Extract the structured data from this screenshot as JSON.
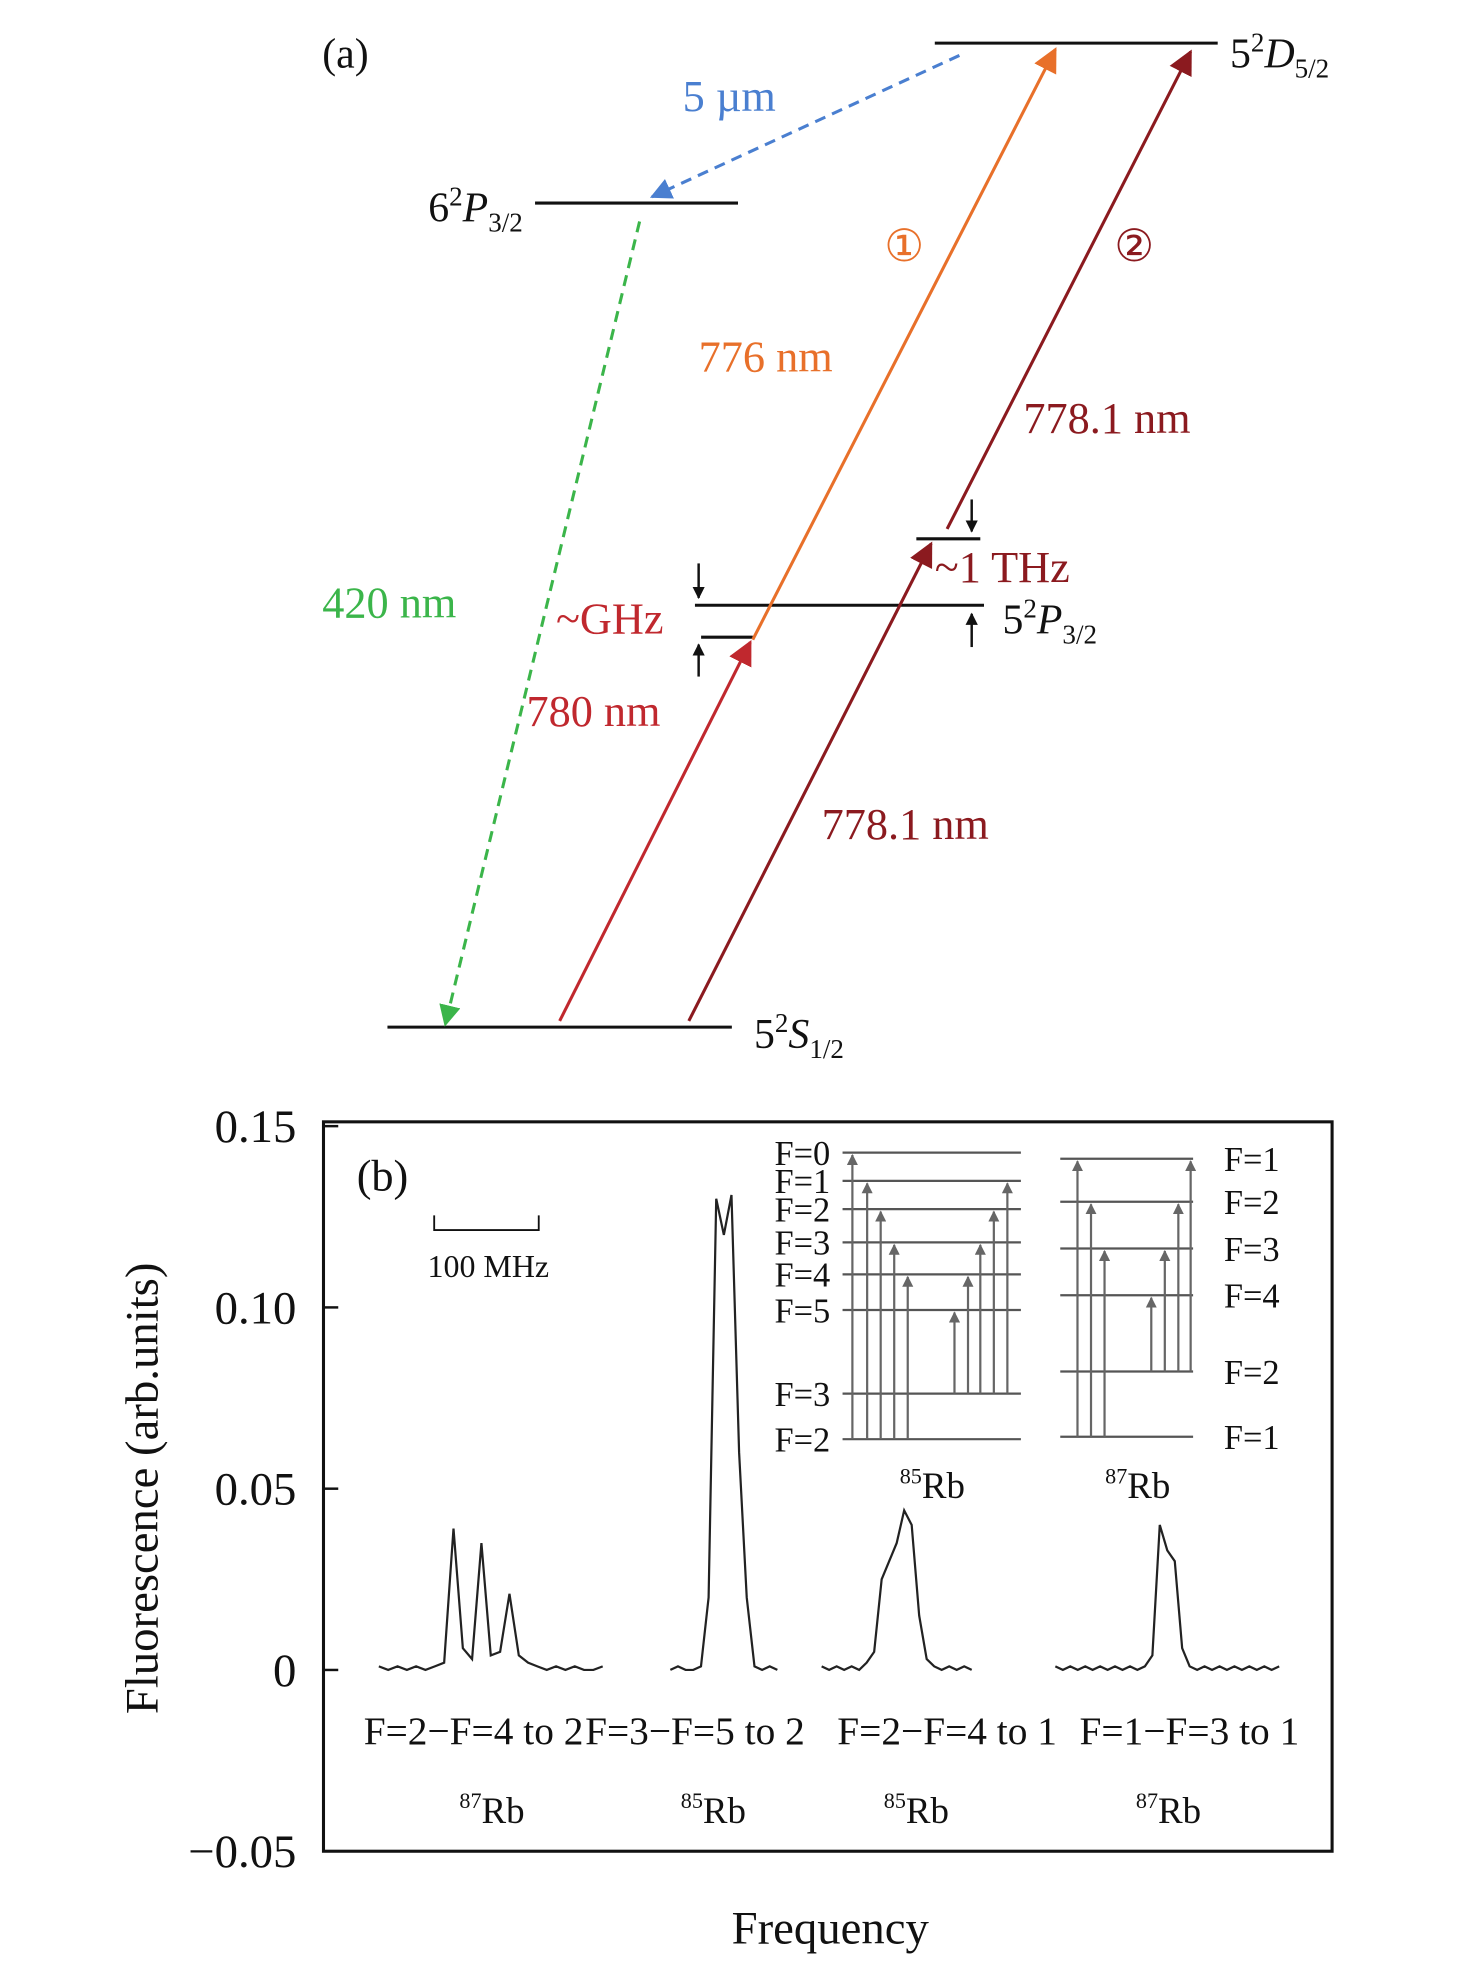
{
  "panel_a": {
    "label": "(a)",
    "levels": [
      {
        "n": "5",
        "sup": "2",
        "term": "D",
        "sub": "5/2"
      },
      {
        "n": "6",
        "sup": "2",
        "term": "P",
        "sub": "3/2"
      },
      {
        "n": "5",
        "sup": "2",
        "term": "P",
        "sub": "3/2"
      },
      {
        "n": "5",
        "sup": "2",
        "term": "S",
        "sub": "1/2"
      }
    ],
    "transitions": [
      "5 µm",
      "420 nm",
      "780 nm",
      "776 nm",
      "778.1 nm",
      "778.1 nm"
    ],
    "detunings": [
      "~GHz",
      "~1 THz"
    ],
    "pathways": [
      "①",
      "②"
    ]
  },
  "chart_data": {
    "type": "line",
    "label": "(b)",
    "ylabel": "Fluorescence (arb.units)",
    "xlabel": "Frequency",
    "ylim": [
      -0.05,
      0.15
    ],
    "yticks": [
      0.15,
      {
        "value": 0.1,
        "label": "0.10"
      },
      0.05,
      0,
      {
        "value": -0.05,
        "label": "−0.05"
      }
    ],
    "scale_bar": "100 MHz",
    "series": [
      {
        "name": "F=2−F=4 to 2",
        "isotope": {
          "mass": "87",
          "element": "Rb"
        },
        "color": "#222222",
        "values": [
          0.001,
          0,
          0.001,
          0,
          0.001,
          0,
          0.001,
          0.002,
          0.039,
          0.006,
          0.003,
          0.035,
          0.004,
          0.005,
          0.021,
          0.004,
          0.002,
          0.001,
          0,
          0.001,
          0,
          0.001,
          0,
          0,
          0.001
        ]
      },
      {
        "name": "F=3−F=5 to 2",
        "isotope": {
          "mass": "85",
          "element": "Rb"
        },
        "color": "#222222",
        "values": [
          0,
          0.001,
          0,
          0,
          0.001,
          0.02,
          0.13,
          0.12,
          0.131,
          0.06,
          0.02,
          0.001,
          0,
          0.001,
          0
        ]
      },
      {
        "name": "F=2−F=4 to 1",
        "isotope": {
          "mass": "85",
          "element": "Rb"
        },
        "color": "#222222",
        "values": [
          0.001,
          0,
          0.001,
          0,
          0.001,
          0,
          0.002,
          0.005,
          0.025,
          0.03,
          0.035,
          0.044,
          0.04,
          0.015,
          0.003,
          0.001,
          0,
          0.001,
          0,
          0.001,
          0
        ]
      },
      {
        "name": "F=1−F=3 to 1",
        "isotope": {
          "mass": "87",
          "element": "Rb"
        },
        "color": "#222222",
        "values": [
          0.001,
          0,
          0.001,
          0,
          0.001,
          0,
          0.001,
          0,
          0.001,
          0,
          0.001,
          0,
          0.001,
          0.004,
          0.04,
          0.033,
          0.03,
          0.006,
          0.001,
          0,
          0.001,
          0,
          0.001,
          0,
          0.001,
          0,
          0.001,
          0,
          0.001,
          0,
          0.001
        ]
      }
    ],
    "insets": [
      {
        "isotope": {
          "mass": "85",
          "element": "Rb"
        },
        "levels": [
          "F=0",
          "F=1",
          "F=2",
          "F=3",
          "F=4",
          "F=5",
          "F=3",
          "F=2"
        ]
      },
      {
        "isotope": {
          "mass": "87",
          "element": "Rb"
        },
        "levels": [
          "F=1",
          "F=2",
          "F=3",
          "F=4",
          "F=2",
          "F=1"
        ]
      }
    ]
  }
}
